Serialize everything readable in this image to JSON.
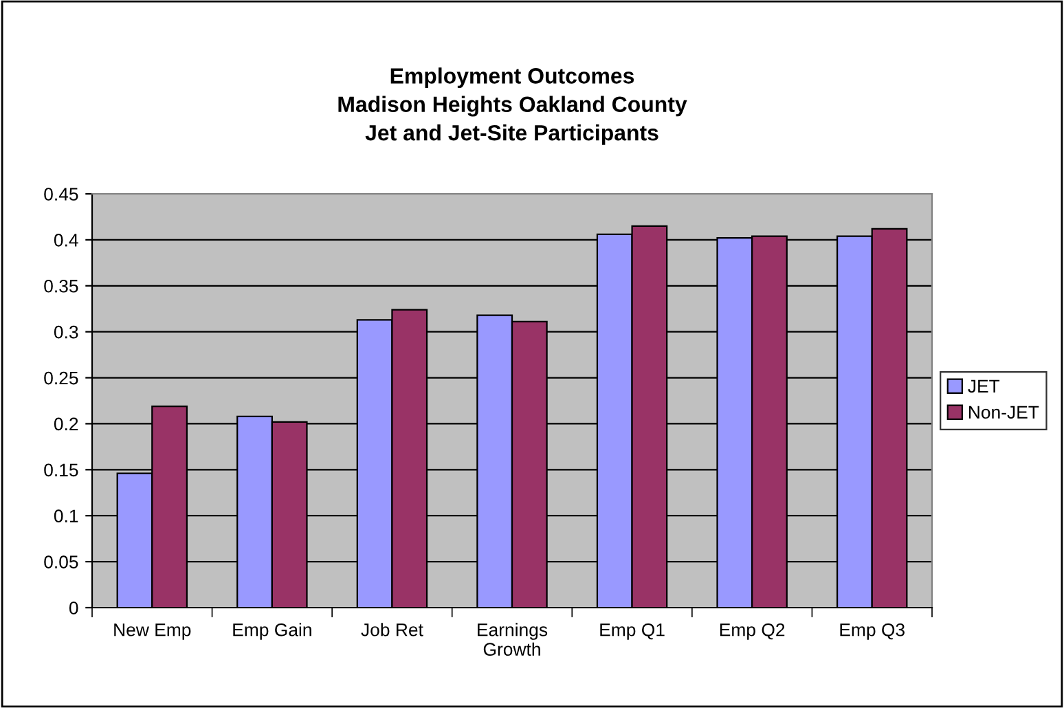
{
  "chart_data": {
    "type": "bar",
    "title": "Employment Outcomes\nMadison Heights Oakland County\nJet and Jet-Site Participants",
    "categories": [
      "New Emp",
      "Emp Gain",
      "Job Ret",
      "Earnings\nGrowth",
      "Emp Q1",
      "Emp Q2",
      "Emp Q3"
    ],
    "series": [
      {
        "name": "JET",
        "color": "#9999ff",
        "values": [
          0.146,
          0.208,
          0.313,
          0.318,
          0.406,
          0.402,
          0.404
        ]
      },
      {
        "name": "Non-JET",
        "color": "#993366",
        "values": [
          0.219,
          0.202,
          0.324,
          0.311,
          0.415,
          0.404,
          0.412
        ]
      }
    ],
    "ylim": [
      0,
      0.45
    ],
    "yticks": [
      0,
      0.05,
      0.1,
      0.15,
      0.2,
      0.25,
      0.3,
      0.35,
      0.4,
      0.45
    ],
    "grid": "y",
    "legend": "right"
  }
}
